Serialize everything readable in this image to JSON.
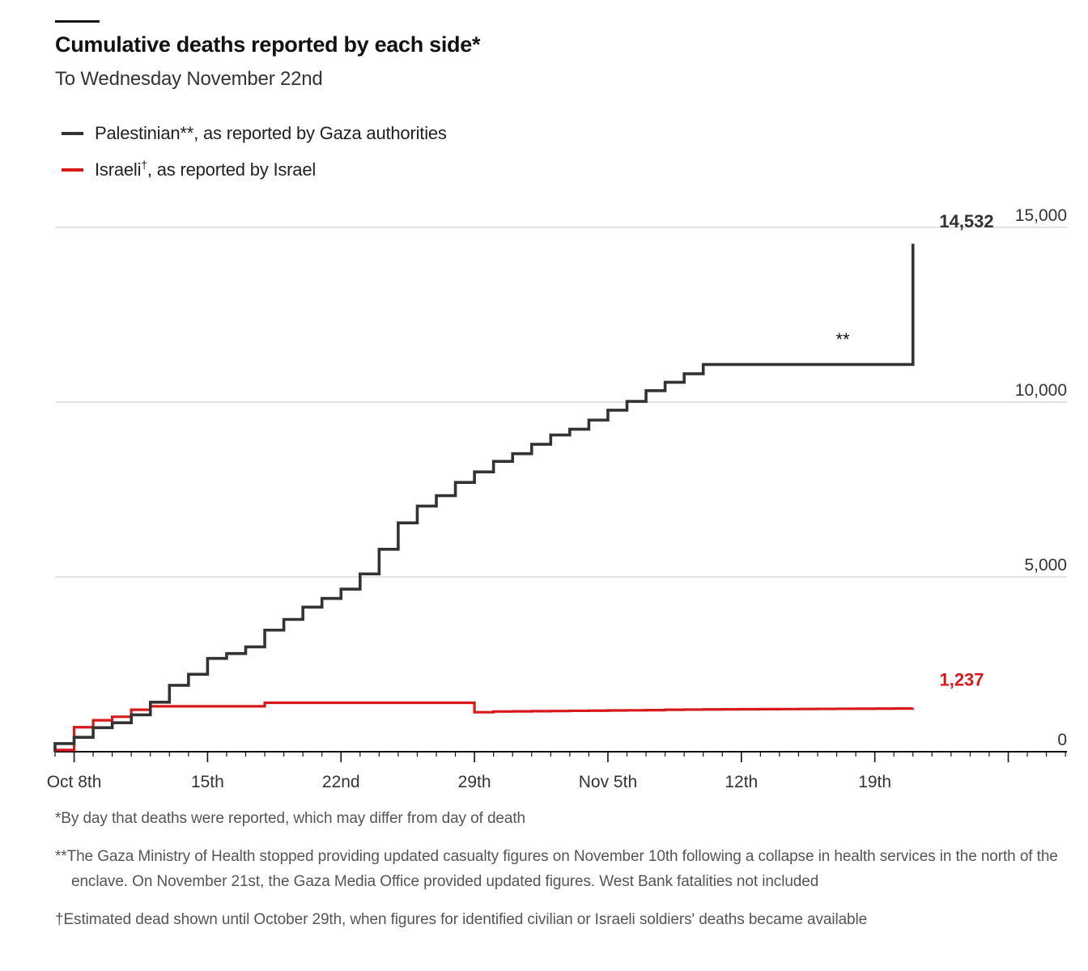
{
  "header": {
    "title": "Cumulative deaths reported by each side*",
    "subtitle": "To Wednesday November 22nd"
  },
  "legend": [
    {
      "key": "palestinian",
      "label_main": "Palestinian**, as reported by Gaza authorities",
      "label_sup": "",
      "label_rest": "",
      "color": "#333333"
    },
    {
      "key": "israeli",
      "label_main": "Israeli",
      "label_sup": "†",
      "label_rest": ", as reported by Israel",
      "color": "#d7191c"
    }
  ],
  "chart_data": {
    "type": "line",
    "step": true,
    "x_unit": "day",
    "x": [
      "Oct 7",
      "Oct 8",
      "Oct 9",
      "Oct 10",
      "Oct 11",
      "Oct 12",
      "Oct 13",
      "Oct 14",
      "Oct 15",
      "Oct 16",
      "Oct 17",
      "Oct 18",
      "Oct 19",
      "Oct 20",
      "Oct 21",
      "Oct 22",
      "Oct 23",
      "Oct 24",
      "Oct 25",
      "Oct 26",
      "Oct 27",
      "Oct 28",
      "Oct 29",
      "Oct 30",
      "Oct 31",
      "Nov 1",
      "Nov 2",
      "Nov 3",
      "Nov 4",
      "Nov 5",
      "Nov 6",
      "Nov 7",
      "Nov 8",
      "Nov 9",
      "Nov 10",
      "Nov 11",
      "Nov 12",
      "Nov 13",
      "Nov 14",
      "Nov 15",
      "Nov 16",
      "Nov 17",
      "Nov 18",
      "Nov 19",
      "Nov 20",
      "Nov 21"
    ],
    "series": [
      {
        "name": "Palestinian**, as reported by Gaza authorities",
        "color": "#333333",
        "values": [
          232,
          413,
          687,
          830,
          1055,
          1417,
          1900,
          2215,
          2670,
          2808,
          3000,
          3478,
          3785,
          4137,
          4385,
          4651,
          5087,
          5791,
          6546,
          7028,
          7326,
          7703,
          8005,
          8306,
          8525,
          8796,
          9061,
          9227,
          9488,
          9770,
          10022,
          10328,
          10569,
          10812,
          11078,
          11078,
          11078,
          11078,
          11078,
          11078,
          11078,
          11078,
          11078,
          11078,
          11078,
          14532
        ]
      },
      {
        "name": "Israeli†, as reported by Israel",
        "color": "#d7191c",
        "values": [
          50,
          700,
          900,
          1000,
          1200,
          1300,
          1300,
          1300,
          1300,
          1300,
          1300,
          1400,
          1400,
          1400,
          1400,
          1400,
          1400,
          1400,
          1400,
          1400,
          1400,
          1400,
          1130,
          1150,
          1155,
          1160,
          1165,
          1170,
          1175,
          1180,
          1185,
          1190,
          1200,
          1205,
          1210,
          1212,
          1215,
          1218,
          1220,
          1222,
          1225,
          1228,
          1230,
          1233,
          1235,
          1237
        ]
      }
    ],
    "end_labels": {
      "palestinian": "14,532",
      "israeli": "1,237"
    },
    "annotation": "**",
    "x_ticks": [
      "Oct 8th",
      "15th",
      "22nd",
      "29th",
      "Nov 5th",
      "12th",
      "19th"
    ],
    "y_ticks": [
      "0",
      "5,000",
      "10,000",
      "15,000"
    ],
    "ylim": [
      0,
      15000
    ],
    "grid": true,
    "legend_position": "top-left"
  },
  "notes": [
    "*By day that deaths were reported, which may differ from day of death",
    "**The Gaza Ministry of Health stopped providing updated casualty figures on November 10th following a collapse in health services in the north of the enclave. On November 21st, the Gaza Media Office provided updated figures. West Bank fatalities not included",
    "†Estimated dead shown until October 29th, when figures for identified civilian or Israeli soldiers' deaths became available"
  ]
}
